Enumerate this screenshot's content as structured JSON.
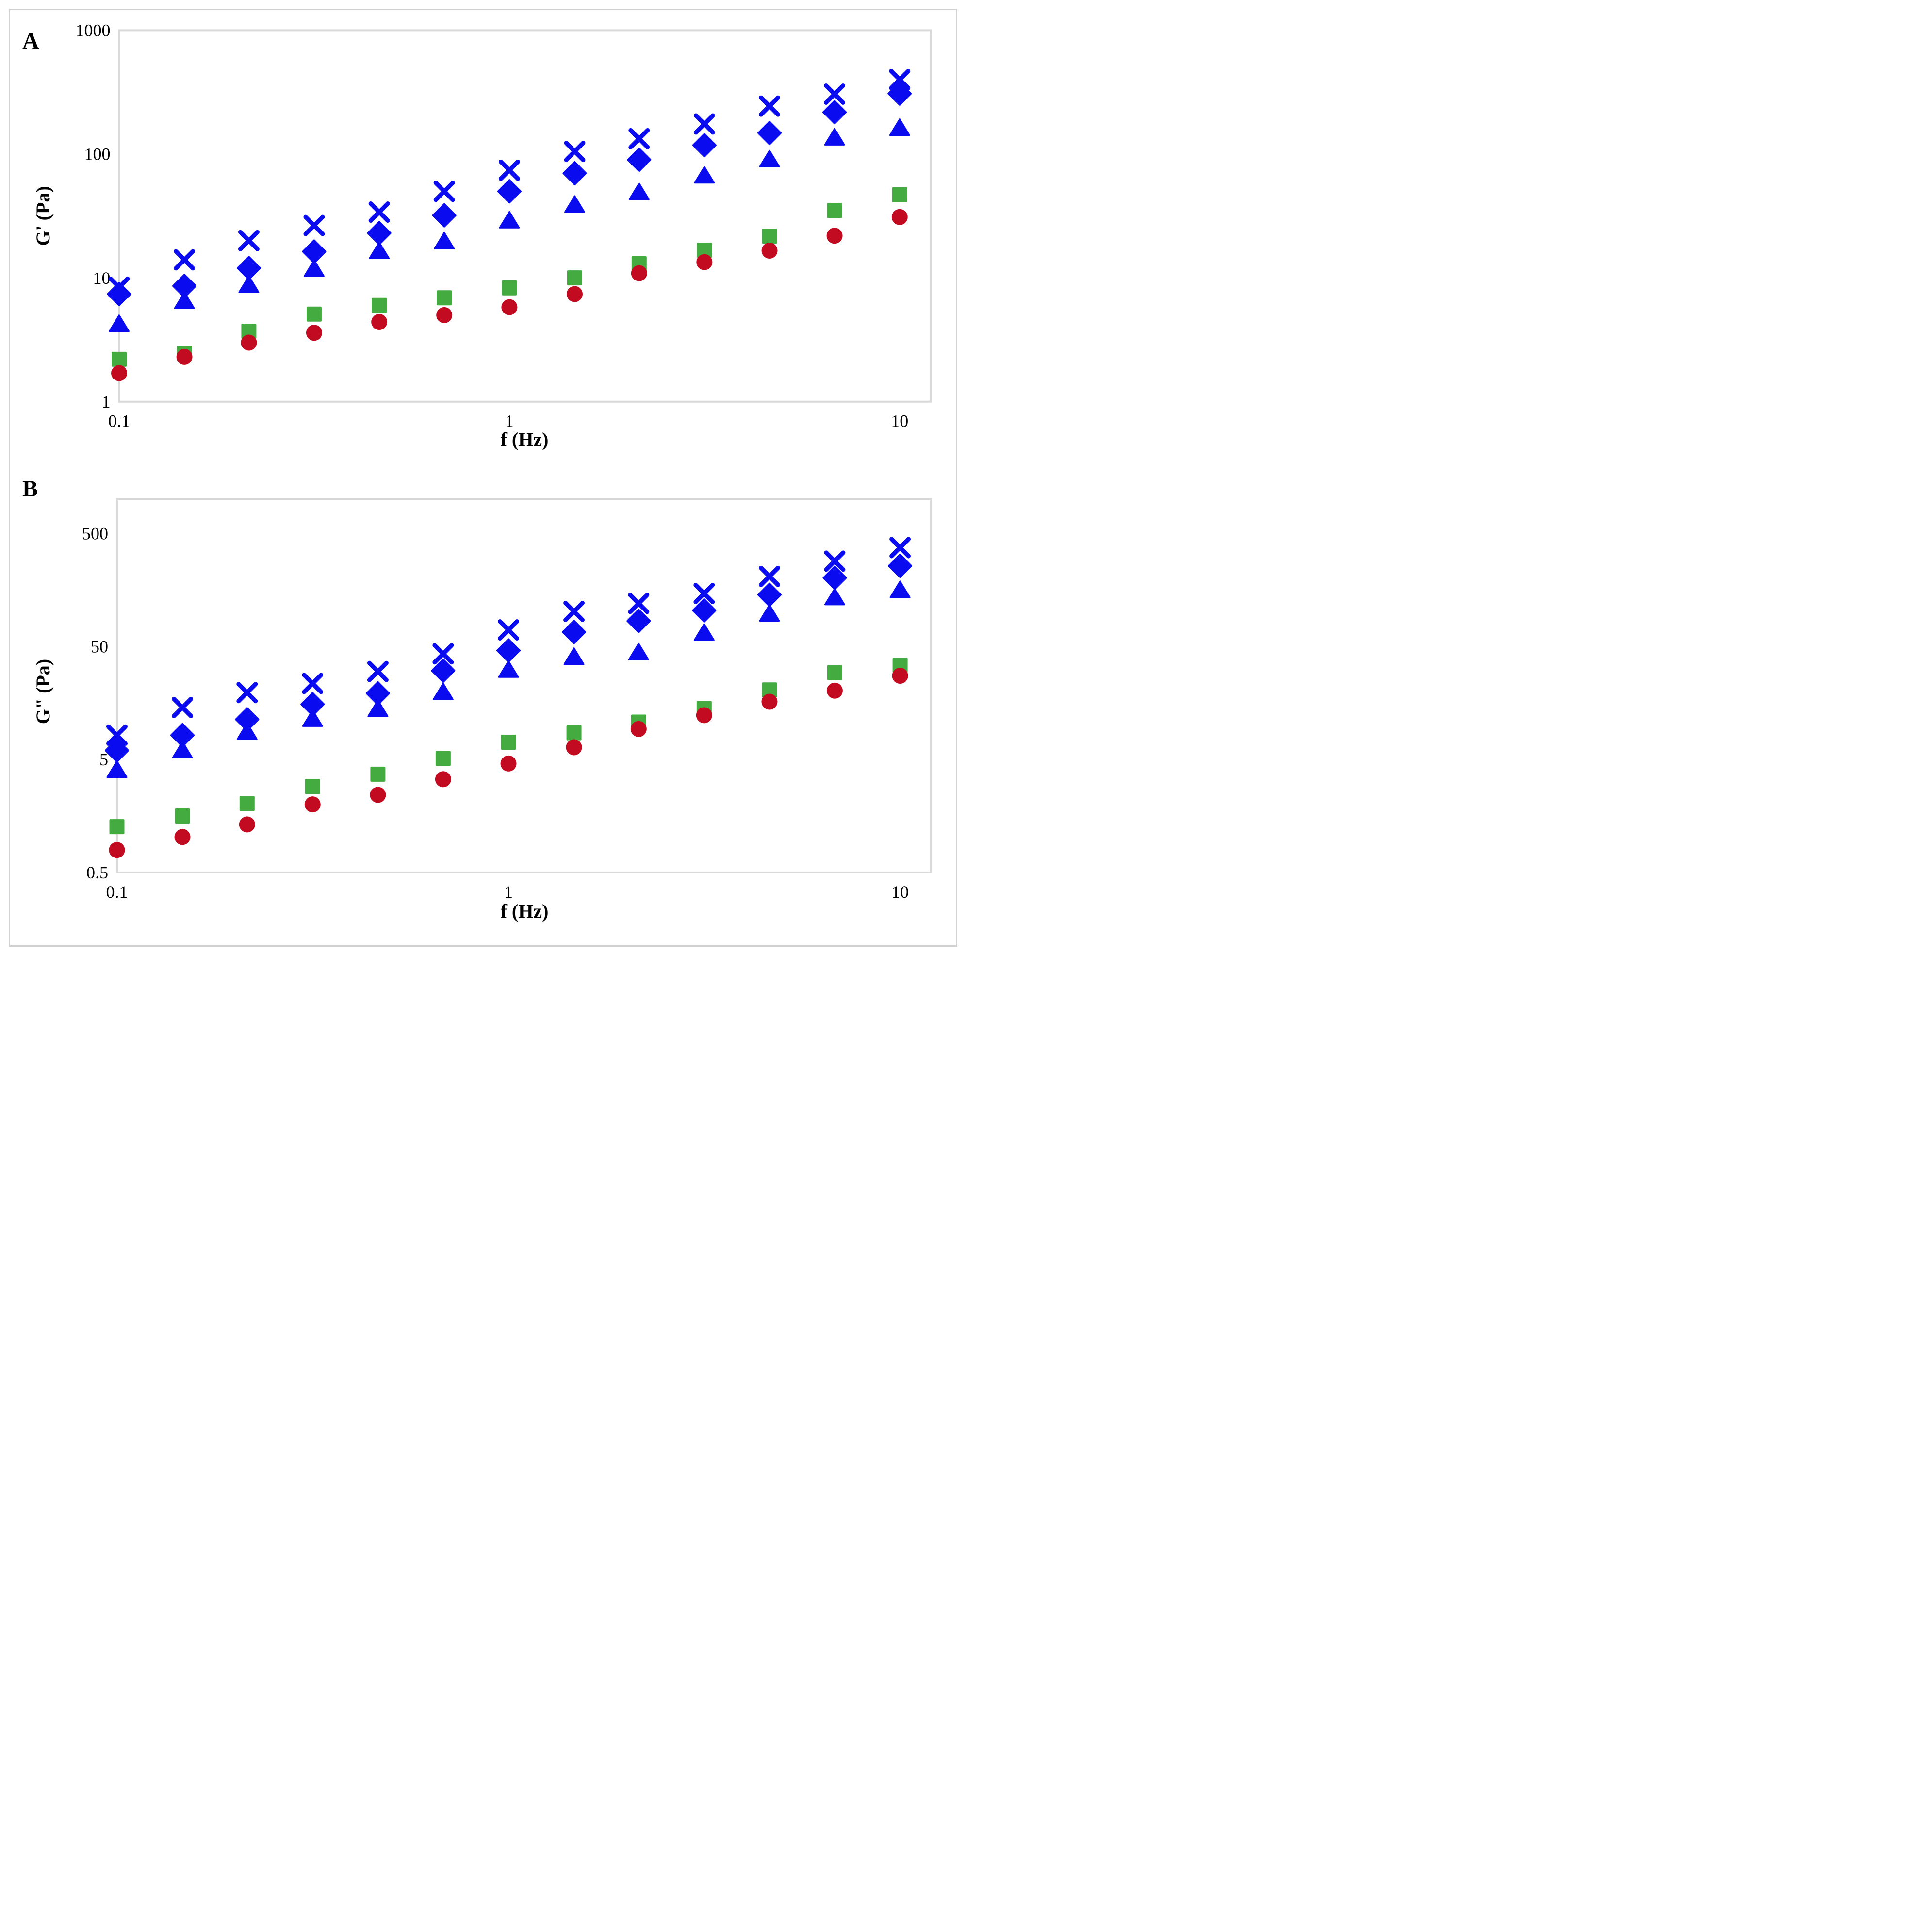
{
  "figure": {
    "panel_count": 2,
    "border_color": "#d0d0d0",
    "frame_color": "#d9d9d9",
    "background": "#ffffff"
  },
  "chart_data": [
    {
      "type": "scatter",
      "panel_letter": "A",
      "xlabel": "f (Hz)",
      "ylabel": "G' (Pa)",
      "x_scale": "log",
      "y_scale": "log",
      "xlim": [
        0.1,
        12
      ],
      "ylim": [
        1,
        1000
      ],
      "grid": "off",
      "legend": "none",
      "x_ticks": [
        {
          "value": 0.1,
          "label": "0.1"
        },
        {
          "value": 1,
          "label": "1"
        },
        {
          "value": 10,
          "label": "10"
        }
      ],
      "y_ticks": [
        {
          "value": 1000,
          "label": "1000"
        },
        {
          "value": 100,
          "label": "100"
        },
        {
          "value": 10,
          "label": "10"
        },
        {
          "value": 1,
          "label": "1"
        }
      ],
      "x": [
        0.1,
        0.147,
        0.215,
        0.316,
        0.464,
        0.681,
        1,
        1.47,
        2.15,
        3.16,
        4.64,
        6.81,
        10
      ],
      "series": [
        {
          "name": "blue-cross",
          "marker": "cross",
          "color": "#0b0bf0",
          "values": [
            8.4,
            14,
            20,
            26.5,
            34,
            50,
            74,
            105,
            133,
            175,
            244,
            305,
            400
          ]
        },
        {
          "name": "blue-diamond",
          "marker": "diamond",
          "color": "#0b0bf0",
          "values": [
            7.4,
            8.6,
            12,
            16.3,
            23,
            32,
            50,
            70,
            90,
            118,
            148,
            218,
            308
          ]
        },
        {
          "name": "blue-triangle",
          "marker": "triangle",
          "color": "#0b0bf0",
          "values": [
            4.3,
            6.6,
            8.9,
            12,
            16.7,
            20,
            29.5,
            39.5,
            50,
            68,
            92,
            138,
            165
          ]
        },
        {
          "name": "green-square",
          "marker": "square",
          "color": "#43ab40",
          "values": [
            2.2,
            2.45,
            3.7,
            5.1,
            6.0,
            6.9,
            8.3,
            10,
            13,
            16.7,
            21.7,
            35,
            47
          ]
        },
        {
          "name": "red-circle",
          "marker": "circle",
          "color": "#c20a20",
          "values": [
            1.7,
            2.3,
            3.0,
            3.6,
            4.4,
            5.0,
            5.8,
            7.4,
            10.9,
            13.4,
            16.6,
            21.9,
            31
          ]
        }
      ]
    },
    {
      "type": "scatter",
      "panel_letter": "B",
      "xlabel": "f (Hz)",
      "ylabel": "G\" (Pa)",
      "x_scale": "log",
      "y_scale": "log",
      "xlim": [
        0.1,
        12
      ],
      "ylim": [
        0.5,
        1000
      ],
      "grid": "off",
      "legend": "none",
      "x_ticks": [
        {
          "value": 0.1,
          "label": "0.1"
        },
        {
          "value": 1,
          "label": "1"
        },
        {
          "value": 10,
          "label": "10"
        }
      ],
      "y_ticks": [
        {
          "value": 500,
          "label": "500"
        },
        {
          "value": 50,
          "label": "50"
        },
        {
          "value": 5,
          "label": "5"
        },
        {
          "value": 0.5,
          "label": "0.5"
        }
      ],
      "x": [
        0.1,
        0.147,
        0.215,
        0.316,
        0.464,
        0.681,
        1,
        1.47,
        2.15,
        3.16,
        4.64,
        6.81,
        10
      ],
      "series": [
        {
          "name": "blue-cross",
          "marker": "cross",
          "color": "#0b0bf0",
          "values": [
            8.2,
            14.4,
            19.5,
            23.5,
            30,
            43,
            70,
            102,
            120,
            147,
            208,
            284,
            374
          ]
        },
        {
          "name": "blue-diamond",
          "marker": "diamond",
          "color": "#0b0bf0",
          "values": [
            6.0,
            8.2,
            11.3,
            15.4,
            19.2,
            30.5,
            46,
            67,
            84,
            104,
            143,
            202,
            258
          ]
        },
        {
          "name": "blue-triangle",
          "marker": "triangle",
          "color": "#0b0bf0",
          "values": [
            4.1,
            6.1,
            8.9,
            11.6,
            14.2,
            20,
            31.5,
            41,
            45,
            67,
            99,
            138,
            160
          ]
        },
        {
          "name": "green-square",
          "marker": "square",
          "color": "#43ab40",
          "values": [
            1.27,
            1.58,
            2.04,
            2.88,
            3.7,
            5.1,
            7.1,
            8.6,
            10.7,
            14.1,
            20.6,
            29.3,
            34
          ]
        },
        {
          "name": "red-circle",
          "marker": "circle",
          "color": "#c20a20",
          "values": [
            0.79,
            1.03,
            1.33,
            2.0,
            2.43,
            3.34,
            4.6,
            6.4,
            9.3,
            12.3,
            16.2,
            20.3,
            27.5
          ]
        }
      ]
    }
  ]
}
